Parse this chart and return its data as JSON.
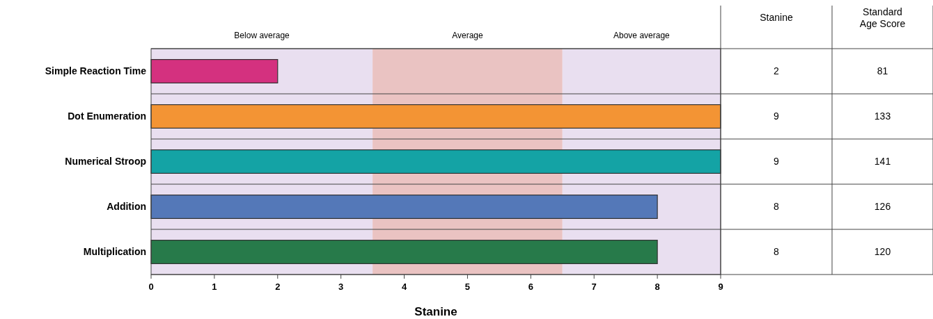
{
  "chart_data": {
    "type": "bar",
    "orientation": "horizontal",
    "xlabel": "Stanine",
    "categories": [
      "Simple Reaction Time",
      "Dot Enumeration",
      "Numerical Stroop",
      "Addition",
      "Multiplication"
    ],
    "values": [
      2,
      9,
      9,
      8,
      8
    ],
    "colors": [
      "#d4317f",
      "#f39434",
      "#14a3a5",
      "#5478b8",
      "#277a4a"
    ],
    "xlim": [
      0,
      9
    ],
    "xticks": [
      0,
      1,
      2,
      3,
      4,
      5,
      6,
      7,
      8,
      9
    ],
    "bands": [
      {
        "axis": "x",
        "from": 0,
        "to": 3.5,
        "label": "Below average",
        "color": "#e9dff0"
      },
      {
        "axis": "x",
        "from": 3.5,
        "to": 6.5,
        "label": "Average",
        "color": "#eac3c2"
      },
      {
        "axis": "x",
        "from": 6.5,
        "to": 9,
        "label": "Above average",
        "color": "#e9dff0"
      }
    ],
    "data_labels": true,
    "annotations": [
      "Stanine",
      "Standard Age Score",
      "81",
      "133",
      "141",
      "126",
      "120"
    ]
  }
}
